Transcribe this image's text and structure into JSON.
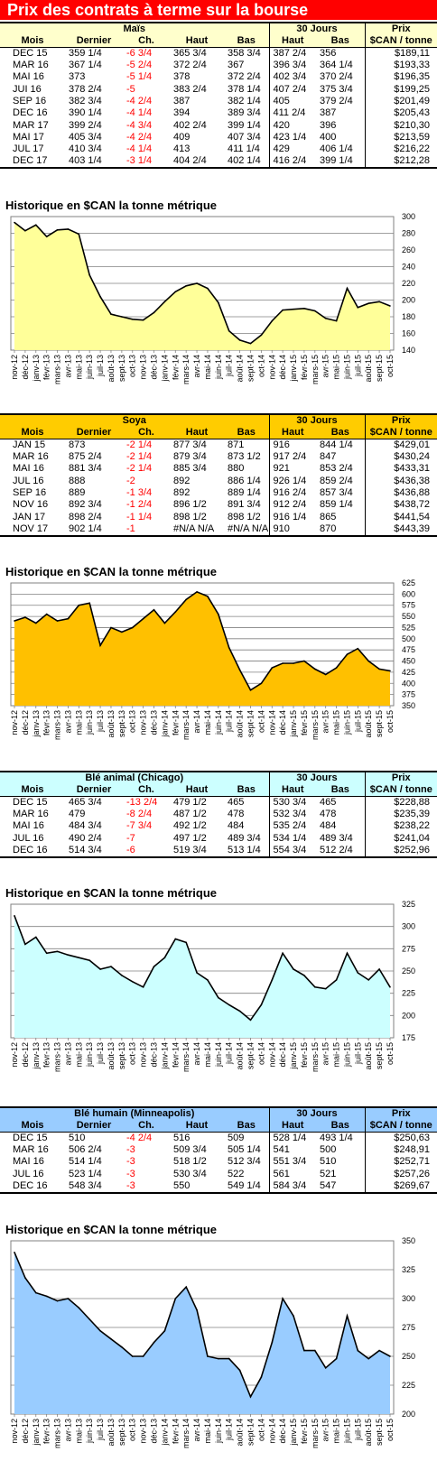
{
  "banner": "Prix des contrats à terme sur la bourse",
  "labels": {
    "mois": "Mois",
    "dernier": "Dernier",
    "ch": "Ch.",
    "haut": "Haut",
    "bas": "Bas",
    "jours30": "30 Jours",
    "prix": "Prix",
    "cad_tonne": "$CAN / tonne",
    "historique": "Historique en $CAN la tonne métrique"
  },
  "colors": {
    "banner": "#ff0000",
    "negative": "#ff0000"
  },
  "months_axis": [
    "nov-12",
    "déc-12",
    "janv-13",
    "févr-13",
    "mars-13",
    "avr-13",
    "mai-13",
    "juin-13",
    "juil-13",
    "août-13",
    "sept-13",
    "oct-13",
    "nov-13",
    "déc-13",
    "janv-14",
    "févr-14",
    "mars-14",
    "avr-14",
    "mai-14",
    "juin-14",
    "juil-14",
    "août-14",
    "sept-14",
    "oct-14",
    "nov-14",
    "déc-14",
    "janv-15",
    "févr-15",
    "mars-15",
    "avr-15",
    "mai-15",
    "juin-15",
    "juil-15",
    "août-15",
    "sept-15",
    "oct-15"
  ],
  "sections": [
    {
      "name": "Maïs",
      "header_bg": "#ffffcc",
      "fill": "#ffff99",
      "rows": [
        {
          "mois": "DEC 15",
          "dernier": "359 1/4",
          "ch": "-6 3/4",
          "haut": "365 3/4",
          "bas": "358 3/4",
          "j_haut": "387 2/4",
          "j_bas": "356",
          "prix": "$189,11"
        },
        {
          "mois": "MAR 16",
          "dernier": "367 1/4",
          "ch": "-5 2/4",
          "haut": "372 2/4",
          "bas": "367",
          "j_haut": "396 3/4",
          "j_bas": "364 1/4",
          "prix": "$193,33"
        },
        {
          "mois": "MAI 16",
          "dernier": "373",
          "ch": "-5 1/4",
          "haut": "378",
          "bas": "372 2/4",
          "j_haut": "402 3/4",
          "j_bas": "370 2/4",
          "prix": "$196,35"
        },
        {
          "mois": "JUI 16",
          "dernier": "378 2/4",
          "ch": "-5",
          "haut": "383 2/4",
          "bas": "378 1/4",
          "j_haut": "407 2/4",
          "j_bas": "375 3/4",
          "prix": "$199,25"
        },
        {
          "mois": "SEP 16",
          "dernier": "382 3/4",
          "ch": "-4 2/4",
          "haut": "387",
          "bas": "382 1/4",
          "j_haut": "405",
          "j_bas": "379 2/4",
          "prix": "$201,49"
        },
        {
          "mois": "DEC 16",
          "dernier": "390 1/4",
          "ch": "-4 1/4",
          "haut": "394",
          "bas": "389 3/4",
          "j_haut": "411 2/4",
          "j_bas": "387",
          "prix": "$205,43"
        },
        {
          "mois": "MAR 17",
          "dernier": "399 2/4",
          "ch": "-4 3/4",
          "haut": "402 2/4",
          "bas": "399 1/4",
          "j_haut": "420",
          "j_bas": "396",
          "prix": "$210,30"
        },
        {
          "mois": "MAI 17",
          "dernier": "405 3/4",
          "ch": "-4 2/4",
          "haut": "409",
          "bas": "407 3/4",
          "j_haut": "423 1/4",
          "j_bas": "400",
          "prix": "$213,59"
        },
        {
          "mois": "JUL 17",
          "dernier": "410 3/4",
          "ch": "-4 1/4",
          "haut": "413",
          "bas": "411 1/4",
          "j_haut": "429",
          "j_bas": "406 1/4",
          "prix": "$216,22"
        },
        {
          "mois": "DEC 17",
          "dernier": "403 1/4",
          "ch": "-3 1/4",
          "haut": "404 2/4",
          "bas": "402 1/4",
          "j_haut": "416 2/4",
          "j_bas": "399 1/4",
          "prix": "$212,28"
        }
      ]
    },
    {
      "name": "Soya",
      "header_bg": "#ffcc00",
      "fill": "#ffc000",
      "rows": [
        {
          "mois": "JAN 15",
          "dernier": "873",
          "ch": "-2 1/4",
          "haut": "877 3/4",
          "bas": "871",
          "j_haut": "916",
          "j_bas": "844 1/4",
          "prix": "$429,01"
        },
        {
          "mois": "MAR 16",
          "dernier": "875 2/4",
          "ch": "-2 1/4",
          "haut": "879 3/4",
          "bas": "873 1/2",
          "j_haut": "917 2/4",
          "j_bas": "847",
          "prix": "$430,24"
        },
        {
          "mois": "MAI 16",
          "dernier": "881 3/4",
          "ch": "-2 1/4",
          "haut": "885 3/4",
          "bas": "880",
          "j_haut": "921",
          "j_bas": "853 2/4",
          "prix": "$433,31"
        },
        {
          "mois": "JUL 16",
          "dernier": "888",
          "ch": "-2",
          "haut": "892",
          "bas": "886 1/4",
          "j_haut": "926 1/4",
          "j_bas": "859 2/4",
          "prix": "$436,38"
        },
        {
          "mois": "SEP 16",
          "dernier": "889",
          "ch": "-1 3/4",
          "haut": "892",
          "bas": "889 1/4",
          "j_haut": "916 2/4",
          "j_bas": "857 3/4",
          "prix": "$436,88"
        },
        {
          "mois": "NOV 16",
          "dernier": "892 3/4",
          "ch": "-1 2/4",
          "haut": "896 1/2",
          "bas": "891 3/4",
          "j_haut": "912 2/4",
          "j_bas": "859 1/4",
          "prix": "$438,72"
        },
        {
          "mois": "JAN 17",
          "dernier": "898 2/4",
          "ch": "-1 1/4",
          "haut": "898 1/2",
          "bas": "898 1/2",
          "j_haut": "916 1/4",
          "j_bas": "865",
          "prix": "$441,54"
        },
        {
          "mois": "NOV 17",
          "dernier": "902 1/4",
          "ch": "-1",
          "haut": "#N/A N/A",
          "bas": "#N/A N/A",
          "j_haut": "910",
          "j_bas": "870",
          "prix": "$443,39"
        }
      ]
    },
    {
      "name": "Blé animal (Chicago)",
      "header_bg": "#ccffff",
      "fill": "#ccffff",
      "rows": [
        {
          "mois": "DEC 15",
          "dernier": "465 3/4",
          "ch": "-13 2/4",
          "haut": "479 1/2",
          "bas": "465",
          "j_haut": "530 3/4",
          "j_bas": "465",
          "prix": "$228,88"
        },
        {
          "mois": "MAR 16",
          "dernier": "479",
          "ch": "-8 2/4",
          "haut": "487 1/2",
          "bas": "478",
          "j_haut": "532 3/4",
          "j_bas": "478",
          "prix": "$235,39"
        },
        {
          "mois": "MAI 16",
          "dernier": "484 3/4",
          "ch": "-7 3/4",
          "haut": "492 1/2",
          "bas": "484",
          "j_haut": "535 2/4",
          "j_bas": "484",
          "prix": "$238,22"
        },
        {
          "mois": "JUL 16",
          "dernier": "490 2/4",
          "ch": "-7",
          "haut": "497 1/2",
          "bas": "489 3/4",
          "j_haut": "534 1/4",
          "j_bas": "489 3/4",
          "prix": "$241,04"
        },
        {
          "mois": "DEC 16",
          "dernier": "514 3/4",
          "ch": "-6",
          "haut": "519 3/4",
          "bas": "513 1/4",
          "j_haut": "554 3/4",
          "j_bas": "512 2/4",
          "prix": "$252,96"
        }
      ]
    },
    {
      "name": "Blé humain (Minneapolis)",
      "header_bg": "#99ccff",
      "fill": "#99ccff",
      "rows": [
        {
          "mois": "DEC 15",
          "dernier": "510",
          "ch": "-4 2/4",
          "haut": "516",
          "bas": "509",
          "j_haut": "528 1/4",
          "j_bas": "493 1/4",
          "prix": "$250,63"
        },
        {
          "mois": "MAR 16",
          "dernier": "506 2/4",
          "ch": "-3",
          "haut": "509 3/4",
          "bas": "505 1/4",
          "j_haut": "541",
          "j_bas": "500",
          "prix": "$248,91"
        },
        {
          "mois": "MAI 16",
          "dernier": "514 1/4",
          "ch": "-3",
          "haut": "518 1/2",
          "bas": "512 3/4",
          "j_haut": "551 3/4",
          "j_bas": "510",
          "prix": "$252,71"
        },
        {
          "mois": "JUL 16",
          "dernier": "523 1/4",
          "ch": "-3",
          "haut": "530 3/4",
          "bas": "522",
          "j_haut": "561",
          "j_bas": "521",
          "prix": "$257,26"
        },
        {
          "mois": "DEC 16",
          "dernier": "548 3/4",
          "ch": "-3",
          "haut": "550",
          "bas": "549 1/4",
          "j_haut": "584 3/4",
          "j_bas": "547",
          "prix": "$269,67"
        }
      ]
    }
  ],
  "chart_data": [
    {
      "type": "area",
      "title": "Historique en $CAN la tonne métrique",
      "ylim": [
        140,
        300
      ],
      "yticks": [
        140,
        160,
        180,
        200,
        220,
        240,
        260,
        280,
        300
      ],
      "x": [
        "nov-12",
        "déc-12",
        "janv-13",
        "févr-13",
        "mars-13",
        "avr-13",
        "mai-13",
        "juin-13",
        "juil-13",
        "août-13",
        "sept-13",
        "oct-13",
        "nov-13",
        "déc-13",
        "janv-14",
        "févr-14",
        "mars-14",
        "avr-14",
        "mai-14",
        "juin-14",
        "juil-14",
        "août-14",
        "sept-14",
        "oct-14",
        "nov-14",
        "déc-14",
        "janv-15",
        "févr-15",
        "mars-15",
        "avr-15",
        "mai-15",
        "juin-15",
        "juil-15",
        "août-15",
        "sept-15",
        "oct-15"
      ],
      "values": [
        293,
        283,
        290,
        276,
        284,
        285,
        279,
        230,
        204,
        183,
        180,
        177,
        176,
        185,
        198,
        210,
        217,
        220,
        214,
        197,
        163,
        152,
        148,
        158,
        175,
        188,
        189,
        190,
        187,
        178,
        175,
        214,
        191,
        196,
        198,
        193
      ],
      "grid": "horizontal"
    },
    {
      "type": "area",
      "title": "Historique en $CAN la tonne métrique",
      "ylim": [
        350,
        625
      ],
      "yticks": [
        350,
        375,
        400,
        425,
        450,
        475,
        500,
        525,
        550,
        575,
        600,
        625
      ],
      "x": [
        "nov-12",
        "déc-12",
        "janv-13",
        "févr-13",
        "mars-13",
        "avr-13",
        "mai-13",
        "juin-13",
        "juil-13",
        "août-13",
        "sept-13",
        "oct-13",
        "nov-13",
        "déc-13",
        "janv-14",
        "févr-14",
        "mars-14",
        "avr-14",
        "mai-14",
        "juin-14",
        "juil-14",
        "août-14",
        "sept-14",
        "oct-14",
        "nov-14",
        "déc-14",
        "janv-15",
        "févr-15",
        "mars-15",
        "avr-15",
        "mai-15",
        "juin-15",
        "juil-15",
        "août-15",
        "sept-15",
        "oct-15"
      ],
      "values": [
        540,
        548,
        535,
        555,
        540,
        545,
        575,
        580,
        485,
        525,
        515,
        525,
        545,
        565,
        535,
        560,
        588,
        605,
        595,
        555,
        480,
        430,
        385,
        400,
        435,
        445,
        445,
        450,
        432,
        420,
        435,
        465,
        478,
        450,
        432,
        428
      ],
      "grid": "horizontal"
    },
    {
      "type": "area",
      "title": "Historique en $CAN la tonne métrique",
      "ylim": [
        175,
        325
      ],
      "yticks": [
        175,
        200,
        225,
        250,
        275,
        300,
        325
      ],
      "x": [
        "nov-12",
        "déc-12",
        "janv-13",
        "févr-13",
        "mars-13",
        "avr-13",
        "mai-13",
        "juin-13",
        "juil-13",
        "août-13",
        "sept-13",
        "oct-13",
        "nov-13",
        "déc-13",
        "janv-14",
        "févr-14",
        "mars-14",
        "avr-14",
        "mai-14",
        "juin-14",
        "juil-14",
        "août-14",
        "sept-14",
        "oct-14",
        "nov-14",
        "déc-14",
        "janv-15",
        "févr-15",
        "mars-15",
        "avr-15",
        "mai-15",
        "juin-15",
        "juil-15",
        "août-15",
        "sept-15",
        "oct-15"
      ],
      "values": [
        312,
        280,
        288,
        270,
        272,
        268,
        265,
        262,
        252,
        255,
        245,
        238,
        232,
        255,
        265,
        286,
        282,
        248,
        240,
        220,
        212,
        205,
        195,
        212,
        240,
        270,
        252,
        245,
        232,
        230,
        240,
        270,
        248,
        240,
        252,
        232
      ],
      "grid": "horizontal"
    },
    {
      "type": "area",
      "title": "Historique en $CAN la tonne métrique",
      "ylim": [
        200,
        350
      ],
      "yticks": [
        200,
        225,
        250,
        275,
        300,
        325,
        350
      ],
      "x": [
        "nov-12",
        "déc-12",
        "janv-13",
        "févr-13",
        "mars-13",
        "avr-13",
        "mai-13",
        "juin-13",
        "juil-13",
        "août-13",
        "sept-13",
        "oct-13",
        "nov-13",
        "déc-13",
        "janv-14",
        "févr-14",
        "mars-14",
        "avr-14",
        "mai-14",
        "juin-14",
        "juil-14",
        "août-14",
        "sept-14",
        "oct-14",
        "nov-14",
        "déc-14",
        "janv-15",
        "févr-15",
        "mars-15",
        "avr-15",
        "mai-15",
        "juin-15",
        "juil-15",
        "août-15",
        "sept-15",
        "oct-15"
      ],
      "values": [
        340,
        318,
        305,
        302,
        298,
        300,
        292,
        282,
        272,
        265,
        258,
        250,
        250,
        262,
        272,
        300,
        310,
        290,
        250,
        248,
        248,
        238,
        215,
        232,
        262,
        300,
        285,
        255,
        255,
        240,
        248,
        285,
        255,
        248,
        255,
        250
      ],
      "grid": "horizontal"
    }
  ]
}
